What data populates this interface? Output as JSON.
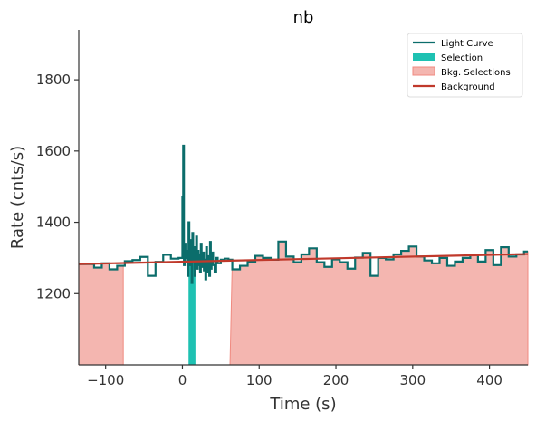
{
  "chart_data": {
    "type": "line",
    "title": "nb",
    "xlabel": "Time (s)",
    "ylabel": "Rate (cnts/s)",
    "xlim": [
      -135,
      450
    ],
    "ylim": [
      1000,
      1940
    ],
    "xticks": [
      -100,
      0,
      100,
      200,
      300,
      400
    ],
    "yticks": [
      1200,
      1400,
      1600,
      1800
    ],
    "legend_position": "top-right",
    "colors": {
      "light_curve": "#0b6d6b",
      "selection": "#1ec1b2",
      "bkg_selections": "#f4b6b0",
      "bkg_selections_edge": "#f08a80",
      "background": "#c0392b",
      "axis": "#333333"
    },
    "legend": [
      {
        "label": "Light Curve",
        "kind": "line",
        "color": "#0b6d6b"
      },
      {
        "label": "Selection",
        "kind": "patch",
        "color": "#1ec1b2"
      },
      {
        "label": "Bkg. Selections",
        "kind": "patch",
        "color": "#f4b6b0"
      },
      {
        "label": "Background",
        "kind": "line",
        "color": "#c0392b"
      }
    ],
    "selection": {
      "x_start": 8,
      "x_end": 17
    },
    "bkg_selections": [
      {
        "x_start": -135,
        "x_end": -77
      },
      {
        "x_start": 62,
        "x_end": 450
      }
    ],
    "background_line": {
      "x": [
        -135,
        450
      ],
      "y": [
        1283,
        1311
      ]
    },
    "light_curve": {
      "x": [
        -135,
        -125,
        -115,
        -105,
        -95,
        -85,
        -75,
        -65,
        -55,
        -45,
        -35,
        -25,
        -15,
        -5,
        0,
        1,
        2,
        3,
        4,
        5,
        6,
        7,
        8,
        9,
        10,
        11,
        12,
        13,
        14,
        15,
        16,
        17,
        18,
        19,
        20,
        21,
        22,
        23,
        24,
        25,
        26,
        27,
        28,
        29,
        30,
        31,
        32,
        33,
        34,
        35,
        36,
        37,
        38,
        39,
        40,
        42,
        44,
        46,
        50,
        55,
        60,
        65,
        75,
        85,
        95,
        105,
        115,
        125,
        135,
        145,
        155,
        165,
        175,
        185,
        195,
        205,
        215,
        225,
        235,
        245,
        255,
        265,
        275,
        285,
        295,
        305,
        315,
        325,
        335,
        345,
        355,
        365,
        375,
        385,
        395,
        405,
        415,
        425,
        435,
        445,
        450
      ],
      "y": [
        1283,
        1283,
        1273,
        1285,
        1268,
        1278,
        1291,
        1294,
        1303,
        1250,
        1289,
        1309,
        1298,
        1300,
        1470,
        1615,
        1280,
        1340,
        1300,
        1320,
        1290,
        1250,
        1400,
        1310,
        1280,
        1350,
        1230,
        1370,
        1290,
        1330,
        1250,
        1300,
        1360,
        1270,
        1320,
        1280,
        1310,
        1260,
        1340,
        1300,
        1275,
        1315,
        1265,
        1295,
        1240,
        1330,
        1285,
        1260,
        1305,
        1250,
        1345,
        1270,
        1290,
        1315,
        1280,
        1260,
        1300,
        1285,
        1295,
        1298,
        1295,
        1268,
        1278,
        1290,
        1306,
        1300,
        1295,
        1346,
        1304,
        1288,
        1310,
        1327,
        1288,
        1275,
        1296,
        1288,
        1270,
        1301,
        1314,
        1250,
        1300,
        1296,
        1310,
        1320,
        1332,
        1304,
        1293,
        1285,
        1300,
        1278,
        1290,
        1300,
        1309,
        1290,
        1322,
        1280,
        1330,
        1304,
        1310,
        1318,
        1318
      ]
    }
  }
}
